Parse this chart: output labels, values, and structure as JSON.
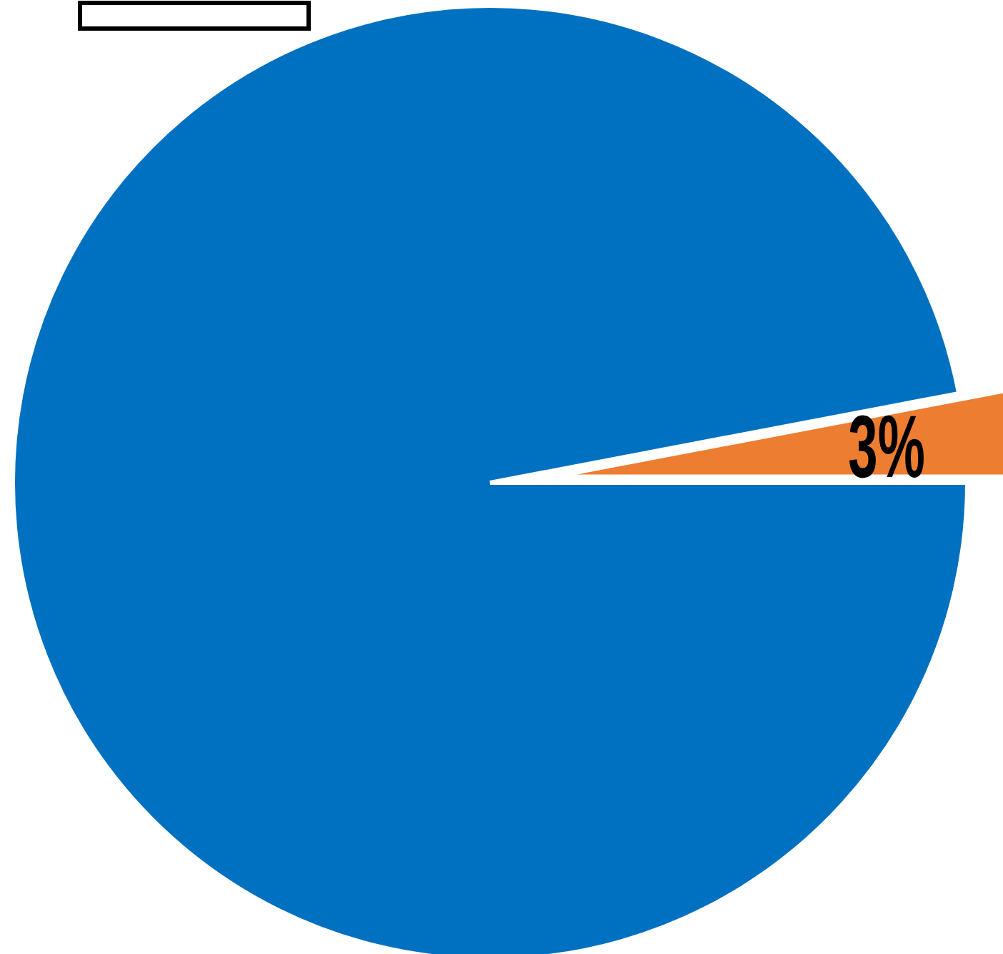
{
  "chart_data": {
    "type": "pie",
    "categories": [
      null,
      null
    ],
    "values": [
      97,
      3
    ],
    "colors": [
      "#0070c0",
      "#ed7d31"
    ],
    "value_labels": [
      null,
      "3%"
    ]
  }
}
